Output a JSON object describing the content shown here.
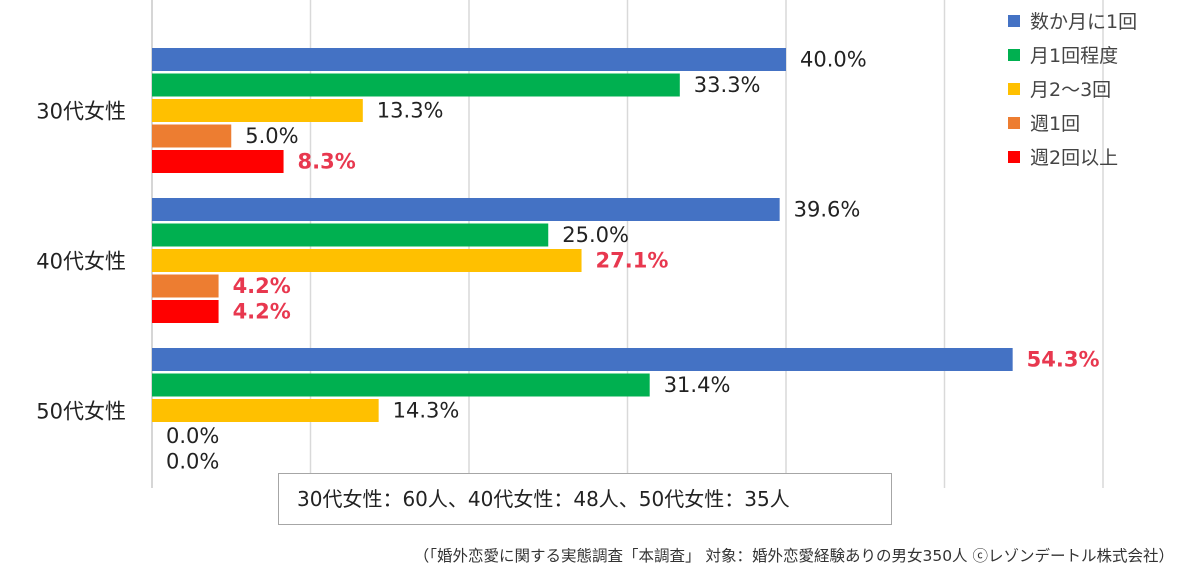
{
  "chart_data": {
    "type": "bar",
    "orientation": "horizontal",
    "categories": [
      "30代女性",
      "40代女性",
      "50代女性"
    ],
    "series": [
      {
        "name": "数か月に1回",
        "color": "#4472c4",
        "values": [
          40.0,
          39.6,
          54.3
        ],
        "labels": [
          "40.0%",
          "39.6%",
          "54.3%"
        ]
      },
      {
        "name": "月1回程度",
        "color": "#00b050",
        "values": [
          33.3,
          25.0,
          31.4
        ],
        "labels": [
          "33.3%",
          "25.0%",
          "31.4%"
        ]
      },
      {
        "name": "月2～3回",
        "color": "#ffc000",
        "values": [
          13.3,
          27.1,
          14.3
        ],
        "labels": [
          "13.3%",
          "27.1%",
          "14.3%"
        ]
      },
      {
        "name": "週1回",
        "color": "#ed7d31",
        "values": [
          5.0,
          4.2,
          0.0
        ],
        "labels": [
          "5.0%",
          "4.2%",
          "0.0%"
        ]
      },
      {
        "name": "週2回以上",
        "color": "#ff0000",
        "values": [
          8.3,
          4.2,
          0.0
        ],
        "labels": [
          "8.3%",
          "4.2%",
          "0.0%"
        ]
      }
    ],
    "highlighted_labels": [
      [
        0,
        4
      ],
      [
        1,
        2
      ],
      [
        1,
        3
      ],
      [
        1,
        4
      ],
      [
        2,
        0
      ]
    ],
    "xlim": [
      0,
      60
    ],
    "grid": true,
    "legend_position": "top-right",
    "title": "",
    "xlabel": "",
    "ylabel": ""
  },
  "note": "30代女性：60人、40代女性：48人、50代女性：35人",
  "source": "（「婚外恋愛に関する実態調査「本調査」 対象：婚外恋愛経験ありの男女350人 ⓒレゾンデートル株式会社）"
}
